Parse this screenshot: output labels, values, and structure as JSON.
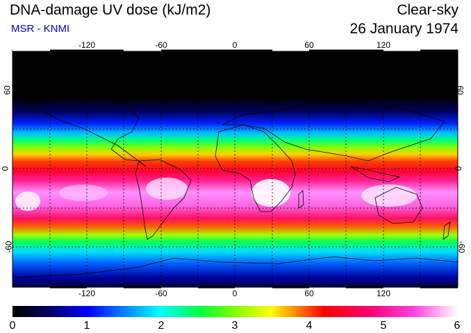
{
  "header": {
    "title": "DNA-damage UV dose (kJ/m2)",
    "condition": "Clear-sky",
    "organization": "MSR - KNMI",
    "date": "26 January 1974"
  },
  "map": {
    "lon_ticks": [
      "-120",
      "-60",
      "0",
      "60",
      "120"
    ],
    "lat_ticks": [
      "60",
      "0",
      "-60"
    ]
  },
  "colorbar": {
    "labels": [
      "0",
      "1",
      "2",
      "3",
      "4",
      "5",
      "6"
    ],
    "min": 0,
    "max": 6,
    "units": "kJ/m2"
  },
  "colors": {
    "scale": [
      "#000000",
      "#000066",
      "#0000ff",
      "#0080ff",
      "#00ffff",
      "#00ff80",
      "#00ff00",
      "#80ff00",
      "#ffff00",
      "#ff8000",
      "#ff0000",
      "#ff0060",
      "#ff20c0",
      "#ff80ff",
      "#ffffff"
    ],
    "subtitle": "#0000cc"
  }
}
